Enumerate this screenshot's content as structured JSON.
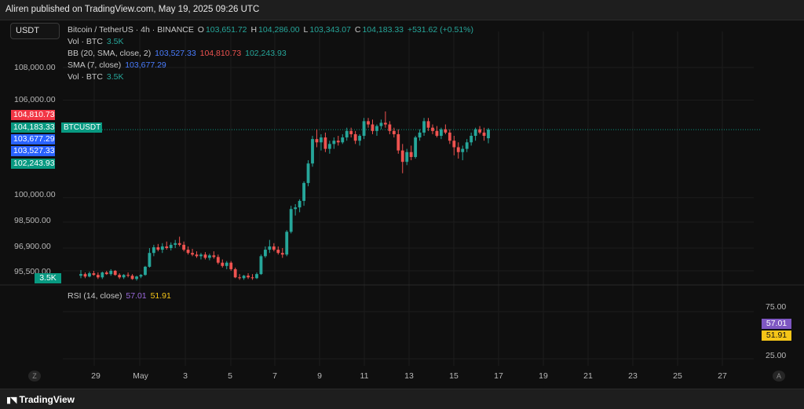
{
  "header": {
    "text": "Aliren published on TradingView.com, May 19, 2025 09:26 UTC"
  },
  "symbol_box": "USDT",
  "legend": {
    "title": "Bitcoin / TetherUS · 4h · BINANCE",
    "o_label": "O",
    "o": "103,651.72",
    "h_label": "H",
    "h": "104,286.00",
    "l_label": "L",
    "l": "103,343.07",
    "c_label": "C",
    "c": "104,183.33",
    "change": "+531.62 (+0.51%)",
    "vol1_label": "Vol · BTC",
    "vol1": "3.5K",
    "bb_label": "BB (20, SMA, close, 2)",
    "bb_basis": "103,527.33",
    "bb_upper": "104,810.73",
    "bb_lower": "102,243.93",
    "sma_label": "SMA (7, close)",
    "sma": "103,677.29",
    "vol2_label": "Vol · BTC",
    "vol2": "3.5K",
    "rsi_label": "RSI (14, close)",
    "rsi": "57.01",
    "rsi_ma": "51.91"
  },
  "price_labels": {
    "bb_upper": "104,810.73",
    "last": "104,183.33",
    "sma": "103,677.29",
    "bb_basis": "103,527.33",
    "bb_lower": "102,243.93",
    "volume": "3.5K",
    "ticker_tag": "BTCUSDT"
  },
  "rsi_labels": {
    "rsi": "57.01",
    "rsi_ma": "51.91"
  },
  "colors": {
    "up": "#26a69a",
    "down": "#ef5350",
    "bb_upper": "#f23645",
    "sma": "#2962ff",
    "rsi": "#7e57c2",
    "rsi_ma": "#f5c518",
    "background": "#0f0f0f"
  },
  "corner_left": "Z",
  "corner_right": "A",
  "footer": {
    "brand": "TradingView",
    "logo": "tradingview-logo-icon"
  },
  "chart_data": [
    {
      "type": "candlestick",
      "title": "Bitcoin / TetherUS · 4h · BINANCE",
      "ylabel": "",
      "yticks": [
        "108,000.00",
        "106,000.00",
        "100,000.00",
        "98,500.00",
        "96,900.00",
        "95,500.00"
      ],
      "ytick_values": [
        108000,
        106000,
        100000,
        98500,
        96900,
        95500
      ],
      "ylim": [
        95000,
        109000
      ],
      "xticks": [
        "29",
        "May",
        "3",
        "5",
        "7",
        "9",
        "11",
        "13",
        "15",
        "17",
        "19",
        "21",
        "23",
        "25",
        "27"
      ],
      "x_range_days": [
        27.3,
        32.4
      ],
      "last_price": 104183.33,
      "grid": true,
      "candles": [
        [
          95200,
          95550,
          95050,
          95300
        ],
        [
          95300,
          95400,
          95050,
          95150
        ],
        [
          95150,
          95450,
          95100,
          95350
        ],
        [
          95350,
          95500,
          95200,
          95250
        ],
        [
          95250,
          95400,
          95000,
          95100
        ],
        [
          95100,
          95450,
          95000,
          95400
        ],
        [
          95400,
          95500,
          95250,
          95300
        ],
        [
          95300,
          95600,
          95200,
          95500
        ],
        [
          95500,
          95550,
          95200,
          95250
        ],
        [
          95250,
          95350,
          95000,
          95100
        ],
        [
          95100,
          95300,
          95000,
          95250
        ],
        [
          95250,
          95400,
          95100,
          95200
        ],
        [
          95200,
          95300,
          94950,
          95000
        ],
        [
          95000,
          95200,
          94900,
          95150
        ],
        [
          95150,
          95300,
          95050,
          95250
        ],
        [
          95250,
          95800,
          95200,
          95750
        ],
        [
          95750,
          96900,
          95700,
          96600
        ],
        [
          96600,
          97100,
          96400,
          96950
        ],
        [
          96950,
          97150,
          96700,
          96800
        ],
        [
          96800,
          97200,
          96600,
          97000
        ],
        [
          97000,
          97300,
          96800,
          96900
        ],
        [
          96900,
          97250,
          96750,
          97100
        ],
        [
          97100,
          97400,
          96900,
          97200
        ],
        [
          97200,
          97600,
          97000,
          97100
        ],
        [
          97100,
          97300,
          96700,
          96800
        ],
        [
          96800,
          97000,
          96500,
          96600
        ],
        [
          96600,
          96850,
          96400,
          96500
        ],
        [
          96500,
          96700,
          96300,
          96400
        ],
        [
          96400,
          96600,
          96200,
          96500
        ],
        [
          96500,
          96650,
          96200,
          96300
        ],
        [
          96300,
          96550,
          96150,
          96450
        ],
        [
          96450,
          96700,
          96250,
          96350
        ],
        [
          96350,
          96500,
          95900,
          96000
        ],
        [
          96000,
          96200,
          95700,
          95800
        ],
        [
          95800,
          96100,
          95600,
          96000
        ],
        [
          96000,
          96100,
          95500,
          95600
        ],
        [
          95600,
          95700,
          95050,
          95100
        ],
        [
          95100,
          95300,
          94950,
          95050
        ],
        [
          95050,
          95250,
          94950,
          95200
        ],
        [
          95200,
          95350,
          95000,
          95100
        ],
        [
          95100,
          95300,
          94950,
          95050
        ],
        [
          95050,
          95400,
          95000,
          95300
        ],
        [
          95300,
          96500,
          95250,
          96400
        ],
        [
          96400,
          97000,
          96300,
          96800
        ],
        [
          96800,
          97400,
          96600,
          97000
        ],
        [
          97000,
          97200,
          96700,
          96800
        ],
        [
          96800,
          97000,
          96500,
          96600
        ],
        [
          96600,
          96900,
          96300,
          96500
        ],
        [
          96500,
          98000,
          96400,
          97900
        ],
        [
          97900,
          99500,
          97800,
          99300
        ],
        [
          99300,
          99600,
          98900,
          99400
        ],
        [
          99400,
          99900,
          99100,
          99800
        ],
        [
          99800,
          101000,
          99500,
          100900
        ],
        [
          100900,
          102300,
          100700,
          102100
        ],
        [
          102100,
          103800,
          101900,
          103600
        ],
        [
          103600,
          104200,
          103100,
          103400
        ],
        [
          103400,
          103900,
          102900,
          103700
        ],
        [
          103700,
          104000,
          102800,
          103000
        ],
        [
          103000,
          103500,
          102700,
          103300
        ],
        [
          103300,
          103700,
          103000,
          103500
        ],
        [
          103500,
          103800,
          103200,
          103400
        ],
        [
          103400,
          103900,
          103300,
          103700
        ],
        [
          103700,
          104300,
          103500,
          104100
        ],
        [
          104100,
          104300,
          103700,
          103900
        ],
        [
          103900,
          104100,
          103300,
          103500
        ],
        [
          103500,
          103900,
          103200,
          103800
        ],
        [
          103800,
          104900,
          103600,
          104700
        ],
        [
          104700,
          104900,
          104300,
          104500
        ],
        [
          104500,
          104800,
          103900,
          104100
        ],
        [
          104100,
          104500,
          103800,
          104400
        ],
        [
          104400,
          104800,
          104200,
          104600
        ],
        [
          104600,
          105300,
          104300,
          104500
        ],
        [
          104500,
          104700,
          103900,
          104100
        ],
        [
          104100,
          104300,
          103700,
          103900
        ],
        [
          103900,
          104200,
          102700,
          102900
        ],
        [
          102900,
          103300,
          101500,
          102200
        ],
        [
          102200,
          103000,
          102000,
          102800
        ],
        [
          102800,
          103200,
          102300,
          102500
        ],
        [
          102500,
          103800,
          102400,
          103700
        ],
        [
          103700,
          104200,
          103500,
          104000
        ],
        [
          104000,
          104900,
          103800,
          104700
        ],
        [
          104700,
          104900,
          104100,
          104300
        ],
        [
          104300,
          104500,
          103900,
          104100
        ],
        [
          104100,
          104400,
          103700,
          103800
        ],
        [
          103800,
          104300,
          103600,
          104200
        ],
        [
          104200,
          104500,
          103900,
          104000
        ],
        [
          104000,
          104200,
          103300,
          103500
        ],
        [
          103500,
          103800,
          102600,
          103100
        ],
        [
          103100,
          103400,
          102400,
          102800
        ],
        [
          102800,
          103200,
          102300,
          103000
        ],
        [
          103000,
          103600,
          102800,
          103400
        ],
        [
          103400,
          104000,
          103200,
          103800
        ],
        [
          103800,
          104300,
          103500,
          104200
        ],
        [
          104200,
          104400,
          103900,
          104000
        ],
        [
          104000,
          104300,
          103500,
          103800
        ],
        [
          103651.72,
          104286.0,
          103343.07,
          104183.33
        ]
      ]
    },
    {
      "type": "line",
      "title": "RSI (14, close)",
      "yticks": [
        "75.00",
        "25.00"
      ],
      "ytick_values": [
        75,
        25
      ],
      "ylim": [
        20,
        85
      ],
      "series": [
        {
          "name": "RSI",
          "last": 57.01
        },
        {
          "name": "RSI MA",
          "last": 51.91
        }
      ]
    }
  ]
}
